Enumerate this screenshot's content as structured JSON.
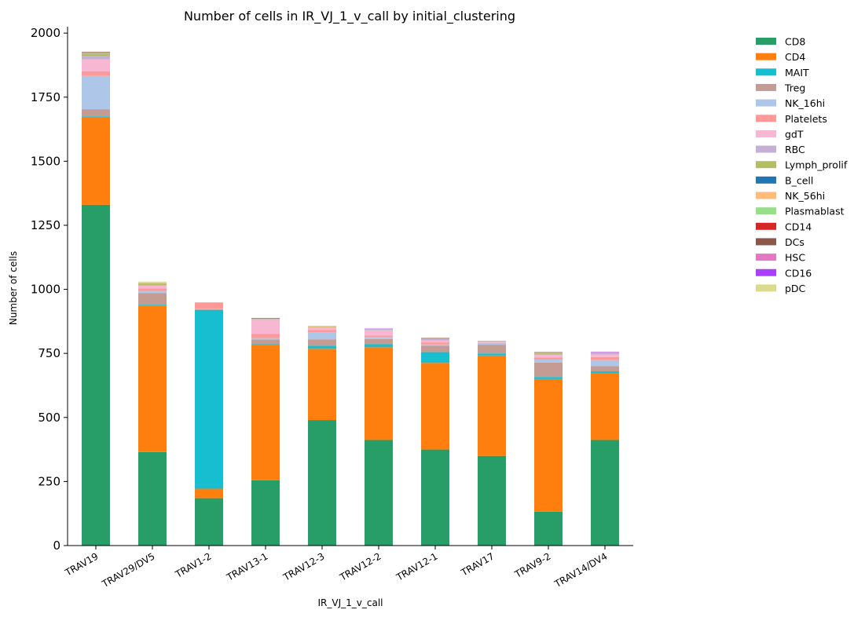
{
  "chart_data": {
    "type": "bar",
    "stacked": true,
    "title": "Number of cells in IR_VJ_1_v_call by initial_clustering",
    "xlabel": "IR_VJ_1_v_call",
    "ylabel": "Number of cells",
    "ylim": [
      0,
      2025
    ],
    "yticks": [
      0,
      250,
      500,
      750,
      1000,
      1250,
      1500,
      1750,
      2000
    ],
    "ytick_labels": [
      "0",
      "250",
      "500",
      "750",
      "1000",
      "1250",
      "1500",
      "1750",
      "2000"
    ],
    "grid": false,
    "legend_position": "right",
    "categories": [
      "TRAV19",
      "TRAV29/DV5",
      "TRAV1-2",
      "TRAV13-1",
      "TRAV12-3",
      "TRAV12-2",
      "TRAV12-1",
      "TRAV17",
      "TRAV9-2",
      "TRAV14/DV4"
    ],
    "series": [
      {
        "name": "CD8",
        "color": "#279e68",
        "values": [
          1330,
          365,
          185,
          255,
          490,
          412,
          375,
          350,
          132,
          412
        ]
      },
      {
        "name": "CD4",
        "color": "#ff7f0e",
        "values": [
          340,
          572,
          37,
          528,
          278,
          362,
          338,
          392,
          518,
          262
        ]
      },
      {
        "name": "MAIT",
        "color": "#17becf",
        "values": [
          5,
          3,
          698,
          3,
          12,
          12,
          42,
          8,
          8,
          6
        ]
      },
      {
        "name": "Treg",
        "color": "#c49c94",
        "values": [
          28,
          46,
          2,
          18,
          25,
          20,
          25,
          34,
          56,
          20
        ]
      },
      {
        "name": "NK_16hi",
        "color": "#aec7e8",
        "values": [
          130,
          8,
          2,
          6,
          28,
          8,
          5,
          4,
          12,
          24
        ]
      },
      {
        "name": "Platelets",
        "color": "#ff9896",
        "values": [
          18,
          10,
          25,
          16,
          8,
          6,
          8,
          3,
          8,
          12
        ]
      },
      {
        "name": "gdT",
        "color": "#f7b6d2",
        "values": [
          46,
          10,
          0,
          55,
          8,
          20,
          8,
          2,
          10,
          10
        ]
      },
      {
        "name": "RBC",
        "color": "#c5b0d5",
        "values": [
          12,
          2,
          0,
          3,
          2,
          2,
          6,
          3,
          4,
          5
        ]
      },
      {
        "name": "Lymph_prolif",
        "color": "#b5bd61",
        "values": [
          10,
          4,
          0,
          1,
          2,
          1,
          1,
          1,
          4,
          1
        ]
      },
      {
        "name": "B_cell",
        "color": "#1f77b4",
        "values": [
          1,
          0,
          0,
          0,
          0,
          0,
          1,
          0,
          0,
          0
        ]
      },
      {
        "name": "NK_56hi",
        "color": "#ffbb78",
        "values": [
          3,
          2,
          0,
          1,
          2,
          1,
          1,
          0,
          1,
          1
        ]
      },
      {
        "name": "Plasmablast",
        "color": "#98df8a",
        "values": [
          0,
          0,
          0,
          0,
          0,
          0,
          0,
          0,
          0,
          0
        ]
      },
      {
        "name": "CD14",
        "color": "#d62728",
        "values": [
          0,
          0,
          0,
          0,
          0,
          0,
          0,
          0,
          0,
          0
        ]
      },
      {
        "name": "DCs",
        "color": "#8c564b",
        "values": [
          3,
          1,
          0,
          2,
          1,
          1,
          1,
          1,
          2,
          1
        ]
      },
      {
        "name": "HSC",
        "color": "#e377c2",
        "values": [
          0,
          0,
          0,
          0,
          0,
          1,
          0,
          0,
          0,
          1
        ]
      },
      {
        "name": "CD16",
        "color": "#aa40fc",
        "values": [
          0,
          0,
          0,
          0,
          0,
          1,
          0,
          0,
          0,
          1
        ]
      },
      {
        "name": "pDC",
        "color": "#dbdb8d",
        "values": [
          2,
          7,
          0,
          0,
          0,
          0,
          0,
          0,
          0,
          0
        ]
      }
    ]
  }
}
